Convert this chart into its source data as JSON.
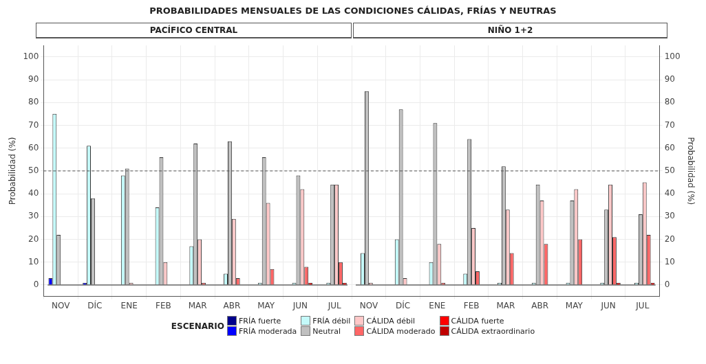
{
  "chart_data": [
    {
      "type": "bar",
      "title": "PROBABILIDADES MENSUALES DE LAS CONDICIONES CÁLIDAS, FRÍAS Y NEUTRAS",
      "subtitle": "PACÍFICO CENTRAL",
      "ylabel": "Probabilidad (%)",
      "legend_title": "ESCENARIO",
      "legend": "bottom",
      "grid": true,
      "categories": [
        "NOV",
        "DÍC",
        "ENE",
        "FEB",
        "MAR",
        "ABR",
        "MAY",
        "JUN",
        "JUL"
      ],
      "ylim": [
        -5,
        105
      ],
      "yticks": [
        0,
        10,
        20,
        30,
        40,
        50,
        60,
        70,
        80,
        90,
        100
      ],
      "ref_lines": [
        {
          "axis": "y",
          "value": 50,
          "color": "#555555",
          "line_style": "dashed"
        }
      ],
      "series": [
        {
          "name": "FRÍA fuerte",
          "color": "#00008b",
          "values": [
            null,
            null,
            null,
            null,
            null,
            null,
            null,
            null,
            null
          ]
        },
        {
          "name": "FRÍA moderada",
          "color": "#0000ff",
          "values": [
            3,
            1,
            null,
            null,
            null,
            null,
            null,
            null,
            null
          ]
        },
        {
          "name": "FRÍA débil",
          "color": "#c4fafa",
          "values": [
            75,
            61,
            48,
            34,
            17,
            5,
            1,
            1,
            1
          ]
        },
        {
          "name": "Neutral",
          "color": "#c0c0c0",
          "values": [
            22,
            38,
            51,
            56,
            62,
            63,
            56,
            48,
            44
          ]
        },
        {
          "name": "CÁLIDA débil",
          "color": "#ffc8c8",
          "values": [
            null,
            null,
            1,
            10,
            20,
            29,
            36,
            42,
            44
          ]
        },
        {
          "name": "CÁLIDA moderado",
          "color": "#ff6666",
          "values": [
            null,
            null,
            null,
            null,
            1,
            3,
            7,
            8,
            10
          ]
        },
        {
          "name": "CÁLIDA fuerte",
          "color": "#ff0000",
          "values": [
            null,
            null,
            null,
            null,
            null,
            null,
            null,
            1,
            1
          ]
        },
        {
          "name": "CÁLIDA extraordinario",
          "color": "#c00000",
          "values": [
            null,
            null,
            null,
            null,
            null,
            null,
            null,
            null,
            null
          ]
        }
      ]
    },
    {
      "type": "bar",
      "subtitle": "NIÑO 1+2",
      "ylabel": "Probabilidad (%)",
      "grid": true,
      "categories": [
        "NOV",
        "DÍC",
        "ENE",
        "FEB",
        "MAR",
        "ABR",
        "MAY",
        "JUN",
        "JUL"
      ],
      "ylim": [
        -5,
        105
      ],
      "yticks": [
        0,
        10,
        20,
        30,
        40,
        50,
        60,
        70,
        80,
        90,
        100
      ],
      "ref_lines": [
        {
          "axis": "y",
          "value": 50,
          "color": "#555555",
          "line_style": "dashed"
        }
      ],
      "series": [
        {
          "color": "#00008b",
          "values": [
            null,
            null,
            null,
            null,
            null,
            null,
            null,
            null,
            null
          ]
        },
        {
          "color": "#0000ff",
          "values": [
            null,
            null,
            null,
            null,
            null,
            null,
            null,
            null,
            null
          ]
        },
        {
          "color": "#c4fafa",
          "values": [
            14,
            20,
            10,
            5,
            1,
            1,
            1,
            1,
            1
          ]
        },
        {
          "color": "#c0c0c0",
          "values": [
            85,
            77,
            71,
            64,
            52,
            44,
            37,
            33,
            31
          ]
        },
        {
          "color": "#ffc8c8",
          "values": [
            1,
            3,
            18,
            25,
            33,
            37,
            42,
            44,
            45
          ]
        },
        {
          "color": "#ff6666",
          "values": [
            null,
            null,
            1,
            6,
            14,
            18,
            20,
            21,
            22
          ]
        },
        {
          "color": "#ff0000",
          "values": [
            null,
            null,
            null,
            null,
            null,
            null,
            null,
            1,
            1
          ]
        },
        {
          "color": "#c00000",
          "values": [
            null,
            null,
            null,
            null,
            null,
            null,
            null,
            null,
            null
          ]
        }
      ]
    }
  ]
}
